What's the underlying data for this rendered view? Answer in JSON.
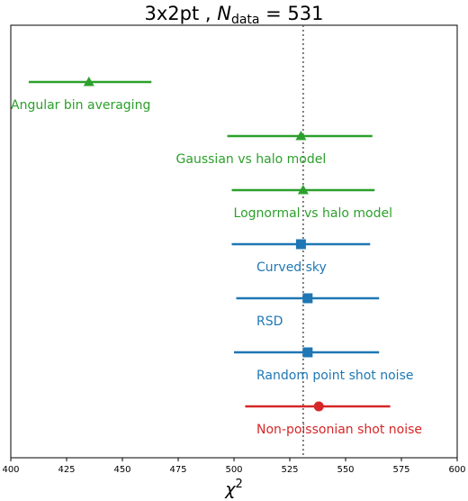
{
  "colors": {
    "green": "#2ca02c",
    "blue": "#1f77b4",
    "red": "#d62728",
    "reference_line": "#555555"
  },
  "chart_data": {
    "type": "scatter",
    "title": "3x2pt , N_data = 531",
    "title_parts": {
      "pre": "3x2pt , ",
      "symbol": "N",
      "subscript": "data",
      "post": " = 531"
    },
    "xlabel": "χ²",
    "xlabel_parts": {
      "symbol": "χ",
      "superscript": "2"
    },
    "ylabel": "",
    "xlim": [
      400,
      600
    ],
    "xticks": [
      400,
      425,
      450,
      475,
      500,
      525,
      550,
      575,
      600
    ],
    "yaxis_ticks": false,
    "grid": false,
    "reference_line": {
      "x": 531,
      "style": "dotted"
    },
    "points": [
      {
        "label": "Angular bin averaging",
        "x": 435,
        "xerr_low": 408,
        "xerr_high": 463,
        "marker": "triangle",
        "color": "#2ca02c"
      },
      {
        "label": "Gaussian vs halo model",
        "x": 530,
        "xerr_low": 497,
        "xerr_high": 562,
        "marker": "triangle",
        "color": "#2ca02c"
      },
      {
        "label": "Lognormal vs halo model",
        "x": 531,
        "xerr_low": 499,
        "xerr_high": 563,
        "marker": "triangle",
        "color": "#2ca02c"
      },
      {
        "label": "Curved sky",
        "x": 530,
        "xerr_low": 499,
        "xerr_high": 561,
        "marker": "square",
        "color": "#1f77b4"
      },
      {
        "label": "RSD",
        "x": 533,
        "xerr_low": 501,
        "xerr_high": 565,
        "marker": "square",
        "color": "#1f77b4"
      },
      {
        "label": "Random point shot noise",
        "x": 533,
        "xerr_low": 500,
        "xerr_high": 565,
        "marker": "square",
        "color": "#1f77b4"
      },
      {
        "label": "Non-poissonian shot noise",
        "x": 538,
        "xerr_low": 505,
        "xerr_high": 570,
        "marker": "circle",
        "color": "#d62728"
      }
    ]
  }
}
